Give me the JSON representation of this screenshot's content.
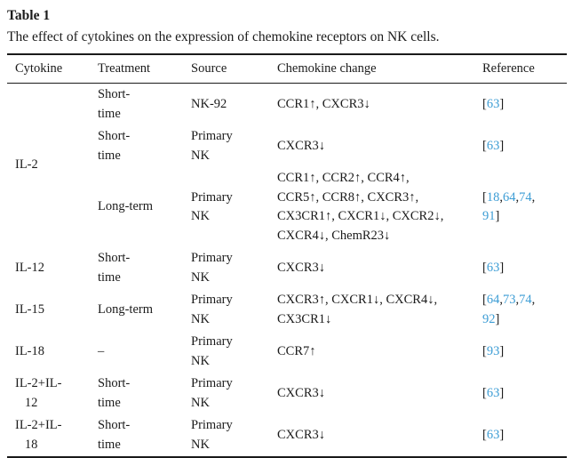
{
  "title": "Table 1",
  "caption": "The effect of cytokines on the expression of chemokine receptors on NK cells.",
  "colors": {
    "citation_blue": "#3d9dd5",
    "text": "#1b1b1b",
    "rule": "#1a1a1a"
  },
  "columns": [
    "Cytokine",
    "Treatment",
    "Source",
    "Chemokine change",
    "Reference"
  ],
  "groups": [
    {
      "cytokine": "IL-2",
      "rows": [
        {
          "treatment": "Short-\ntime",
          "source": "NK-92",
          "change": "CCR1↑, CXCR3↓",
          "reference": "[63]"
        },
        {
          "treatment": "Short-\ntime",
          "source": "Primary\nNK",
          "change": "CXCR3↓",
          "reference": "[63]"
        },
        {
          "treatment": "Long-term",
          "source": "Primary\nNK",
          "change": "CCR1↑, CCR2↑, CCR4↑,\nCCR5↑, CCR8↑, CXCR3↑,\nCX3CR1↑, CXCR1↓, CXCR2↓,\nCXCR4↓, ChemR23↓",
          "reference": "[18,64,74,\n91]"
        }
      ]
    },
    {
      "cytokine": "IL-12",
      "rows": [
        {
          "treatment": "Short-\ntime",
          "source": "Primary\nNK",
          "change": "CXCR3↓",
          "reference": "[63]"
        }
      ]
    },
    {
      "cytokine": "IL-15",
      "rows": [
        {
          "treatment": "Long-term",
          "source": "Primary\nNK",
          "change": "CXCR3↑, CXCR1↓, CXCR4↓,\nCX3CR1↓",
          "reference": "[64,73,74,\n92]"
        }
      ]
    },
    {
      "cytokine": "IL-18",
      "rows": [
        {
          "treatment": "–",
          "source": "Primary\nNK",
          "change": "CCR7↑",
          "reference": "[93]"
        }
      ]
    },
    {
      "cytokine": "IL-2+IL-\n   12",
      "rows": [
        {
          "treatment": "Short-\ntime",
          "source": "Primary\nNK",
          "change": "CXCR3↓",
          "reference": "[63]"
        }
      ]
    },
    {
      "cytokine": "IL-2+IL-\n   18",
      "rows": [
        {
          "treatment": "Short-\ntime",
          "source": "Primary\nNK",
          "change": "CXCR3↓",
          "reference": "[63]"
        }
      ]
    }
  ]
}
